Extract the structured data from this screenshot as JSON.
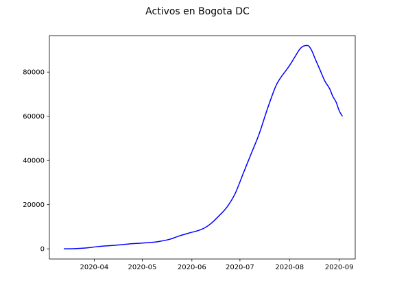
{
  "chart_data": {
    "type": "line",
    "title": "Activos en Bogota DC",
    "xlabel": "",
    "ylabel": "",
    "xlim": [
      "2020-03-04",
      "2020-09-11"
    ],
    "ylim": [
      -4600,
      96500
    ],
    "grid": false,
    "line_color": "#0000ff",
    "x_ticks": [
      {
        "value": "2020-04-01",
        "label": "2020-04"
      },
      {
        "value": "2020-05-01",
        "label": "2020-05"
      },
      {
        "value": "2020-06-01",
        "label": "2020-06"
      },
      {
        "value": "2020-07-01",
        "label": "2020-07"
      },
      {
        "value": "2020-08-01",
        "label": "2020-08"
      },
      {
        "value": "2020-09-01",
        "label": "2020-09"
      }
    ],
    "y_ticks": [
      {
        "value": 0,
        "label": "0"
      },
      {
        "value": 20000,
        "label": "20000"
      },
      {
        "value": 40000,
        "label": "40000"
      },
      {
        "value": 60000,
        "label": "60000"
      },
      {
        "value": 80000,
        "label": "80000"
      }
    ],
    "series": [
      {
        "name": "",
        "x": [
          "2020-03-13",
          "2020-03-20",
          "2020-03-27",
          "2020-04-03",
          "2020-04-10",
          "2020-04-17",
          "2020-04-24",
          "2020-05-01",
          "2020-05-08",
          "2020-05-12",
          "2020-05-18",
          "2020-05-24",
          "2020-05-30",
          "2020-06-05",
          "2020-06-09",
          "2020-06-13",
          "2020-06-18",
          "2020-06-23",
          "2020-06-28",
          "2020-07-03",
          "2020-07-08",
          "2020-07-13",
          "2020-07-18",
          "2020-07-23",
          "2020-07-26",
          "2020-07-29",
          "2020-08-01",
          "2020-08-04",
          "2020-08-07",
          "2020-08-09",
          "2020-08-11",
          "2020-08-13",
          "2020-08-15",
          "2020-08-17",
          "2020-08-20",
          "2020-08-23",
          "2020-08-26",
          "2020-08-28",
          "2020-08-30",
          "2020-09-01",
          "2020-09-03"
        ],
        "values": [
          0,
          100,
          400,
          1000,
          1400,
          1800,
          2300,
          2600,
          3000,
          3400,
          4300,
          5800,
          7100,
          8300,
          9500,
          11500,
          15000,
          19000,
          25000,
          34000,
          43000,
          52000,
          63000,
          73000,
          77000,
          80000,
          83000,
          86500,
          90000,
          91500,
          92000,
          91800,
          89500,
          86000,
          81000,
          76000,
          72500,
          69000,
          66500,
          62500,
          60000
        ]
      }
    ]
  }
}
